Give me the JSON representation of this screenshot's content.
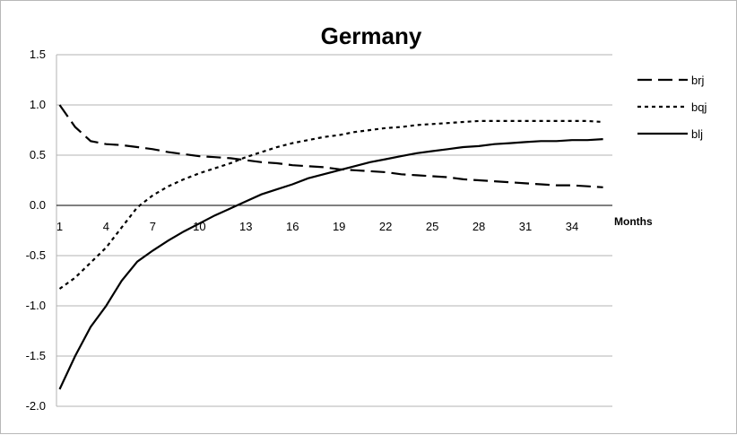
{
  "chart_data": {
    "type": "line",
    "title": "Germany",
    "xlabel": "Months",
    "ylabel": "",
    "ylim": [
      -2.0,
      1.5
    ],
    "y_ticks": [
      "1.5",
      "1.0",
      "0.5",
      "0.0",
      "-0.5",
      "-1.0",
      "-1.5",
      "-2.0"
    ],
    "x_ticks": [
      "1",
      "4",
      "7",
      "10",
      "13",
      "16",
      "19",
      "22",
      "25",
      "28",
      "31",
      "34"
    ],
    "x": [
      1,
      2,
      3,
      4,
      5,
      6,
      7,
      8,
      9,
      10,
      11,
      12,
      13,
      14,
      15,
      16,
      17,
      18,
      19,
      20,
      21,
      22,
      23,
      24,
      25,
      26,
      27,
      28,
      29,
      30,
      31,
      32,
      33,
      34,
      35,
      36
    ],
    "grid": true,
    "legend_position": "right",
    "series": [
      {
        "name": "brj",
        "style": "long-dash",
        "color": "#000000",
        "values": [
          1.0,
          0.78,
          0.64,
          0.61,
          0.6,
          0.58,
          0.56,
          0.53,
          0.51,
          0.49,
          0.48,
          0.47,
          0.45,
          0.43,
          0.42,
          0.4,
          0.39,
          0.38,
          0.36,
          0.35,
          0.34,
          0.33,
          0.31,
          0.3,
          0.29,
          0.28,
          0.26,
          0.25,
          0.24,
          0.23,
          0.22,
          0.21,
          0.2,
          0.2,
          0.19,
          0.18
        ]
      },
      {
        "name": "bqj",
        "style": "short-dash",
        "color": "#000000",
        "values": [
          -0.83,
          -0.72,
          -0.57,
          -0.42,
          -0.22,
          -0.02,
          0.1,
          0.19,
          0.26,
          0.32,
          0.37,
          0.42,
          0.48,
          0.53,
          0.58,
          0.62,
          0.65,
          0.68,
          0.7,
          0.73,
          0.75,
          0.77,
          0.78,
          0.8,
          0.81,
          0.82,
          0.83,
          0.84,
          0.84,
          0.84,
          0.84,
          0.84,
          0.84,
          0.84,
          0.84,
          0.83
        ]
      },
      {
        "name": "blj",
        "style": "solid",
        "color": "#000000",
        "values": [
          -1.83,
          -1.5,
          -1.21,
          -1.0,
          -0.75,
          -0.56,
          -0.45,
          -0.35,
          -0.26,
          -0.18,
          -0.1,
          -0.03,
          0.04,
          0.11,
          0.16,
          0.21,
          0.27,
          0.31,
          0.35,
          0.39,
          0.43,
          0.46,
          0.49,
          0.52,
          0.54,
          0.56,
          0.58,
          0.59,
          0.61,
          0.62,
          0.63,
          0.64,
          0.64,
          0.65,
          0.65,
          0.66
        ]
      }
    ]
  }
}
